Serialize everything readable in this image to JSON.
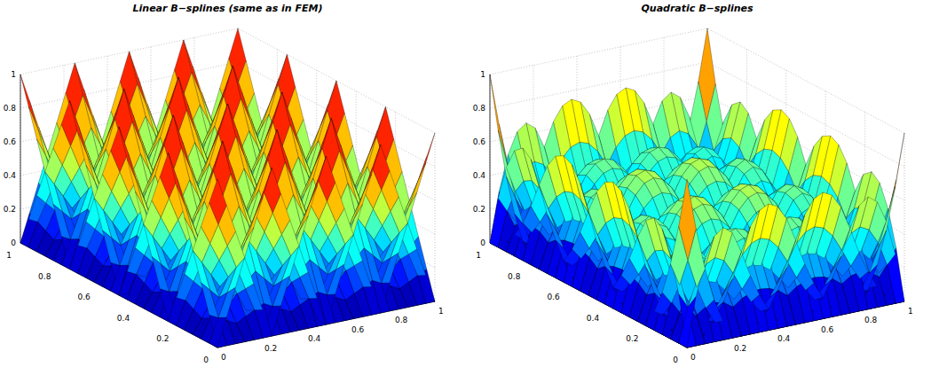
{
  "chart_data": [
    {
      "type": "surface",
      "title": "Linear B−splines (same as in FEM)",
      "degree": 1,
      "knots": [
        0,
        0,
        0.25,
        0.5,
        0.75,
        1,
        1
      ],
      "xlim": [
        0,
        1
      ],
      "ylim": [
        0,
        1
      ],
      "zlim": [
        0,
        1
      ],
      "xticks": [
        0,
        0.2,
        0.4,
        0.6,
        0.8,
        1
      ],
      "yticks": [
        0,
        0.2,
        0.4,
        0.6,
        0.8,
        1
      ],
      "zticks": [
        0,
        0.2,
        0.4,
        0.6,
        0.8,
        1
      ],
      "grid": true
    },
    {
      "type": "surface",
      "title": "Quadratic B−splines",
      "degree": 2,
      "knots": [
        0,
        0,
        0,
        0.25,
        0.5,
        0.75,
        1,
        1,
        1
      ],
      "xlim": [
        0,
        1
      ],
      "ylim": [
        0,
        1
      ],
      "zlim": [
        0,
        1
      ],
      "xticks": [
        0,
        0.2,
        0.4,
        0.6,
        0.8,
        1
      ],
      "yticks": [
        0,
        0.2,
        0.4,
        0.6,
        0.8,
        1
      ],
      "zticks": [
        0,
        0.2,
        0.4,
        0.6,
        0.8,
        1
      ],
      "grid": true
    }
  ]
}
